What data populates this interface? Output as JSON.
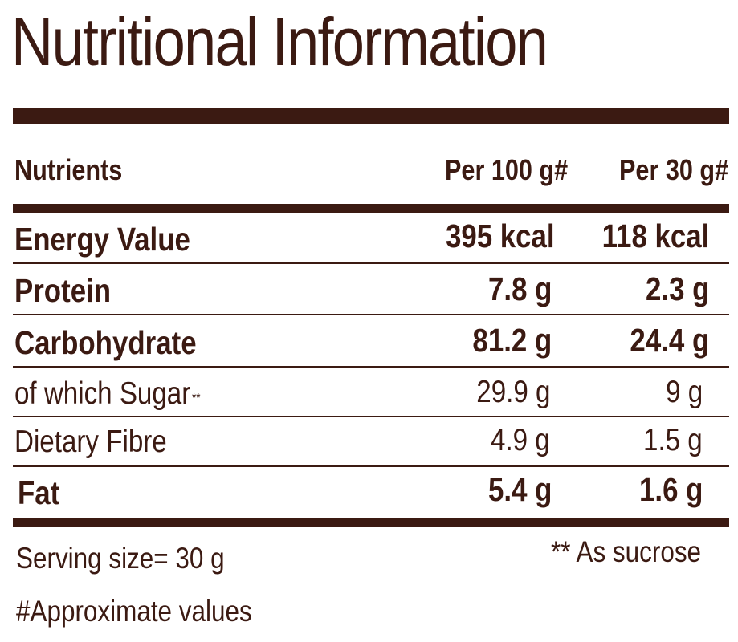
{
  "title": "Nutritional Information",
  "columns": {
    "nutrient": "Nutrients",
    "per100": "Per 100 g#",
    "per30": "Per 30 g#"
  },
  "rows": [
    {
      "name": "Energy Value",
      "per100": "395 kcal",
      "per30": "118 kcal",
      "bold": true
    },
    {
      "name": "Protein",
      "per100": "7.8 g",
      "per30": "2.3 g",
      "bold": true
    },
    {
      "name": "Carbohydrate",
      "per100": "81.2 g",
      "per30": "24.4 g",
      "bold": true
    },
    {
      "name": "of which Sugar",
      "mark": "**",
      "per100": "29.9 g",
      "per30": "9 g",
      "bold": false
    },
    {
      "name": "Dietary Fibre",
      "per100": "4.9 g",
      "per30": "1.5 g",
      "bold": false
    },
    {
      "name": "Fat",
      "per100": "5.4 g",
      "per30": "1.6 g",
      "bold": true
    }
  ],
  "footer": {
    "serving": "Serving size= 30 g",
    "sucrose_note": "** As sucrose",
    "approx_note": "#Approximate values"
  }
}
